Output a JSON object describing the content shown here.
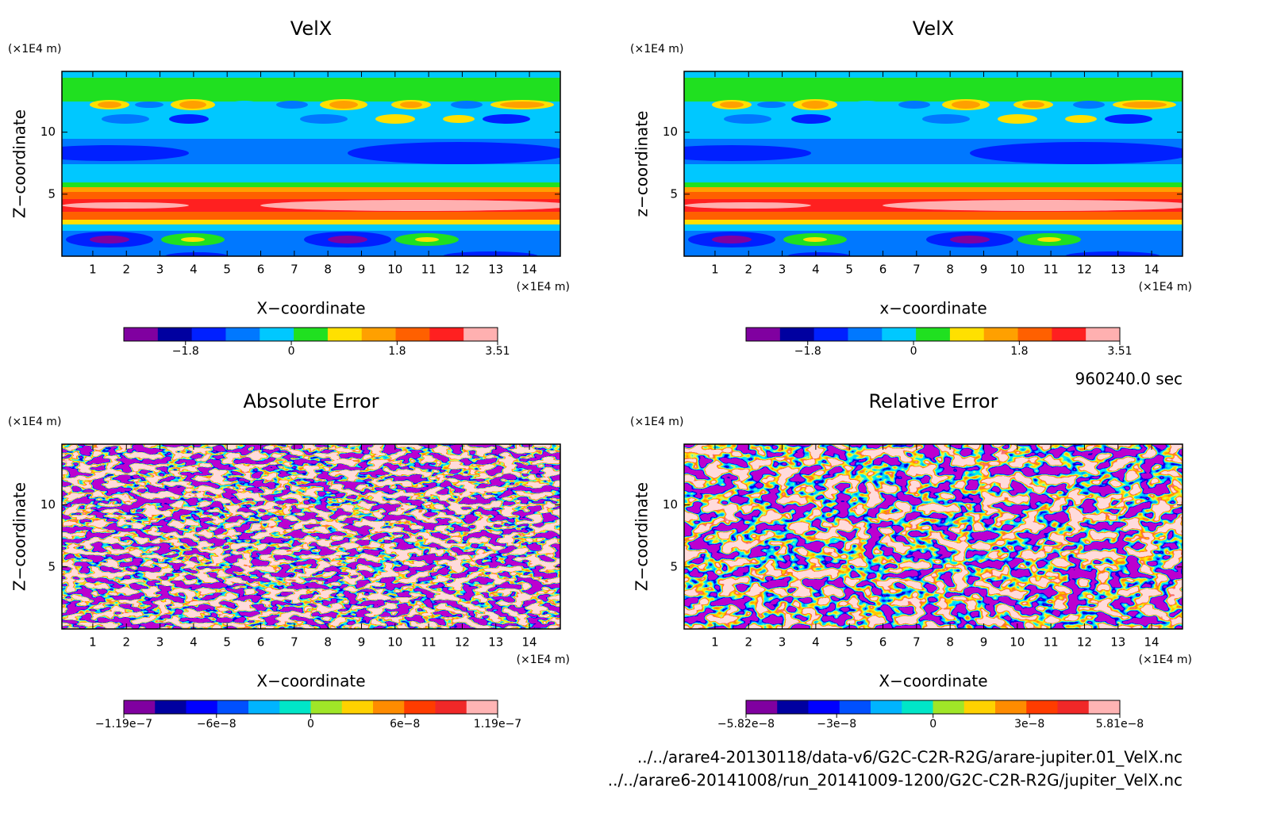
{
  "chart_data": [
    {
      "type": "contour",
      "title": "VelX",
      "xlabel": "X−coordinate",
      "ylabel": "Z−coordinate",
      "xunit": "(×1E4 m)",
      "yunit": "(×1E4 m)",
      "xlim": [
        0.08,
        14.92
      ],
      "ylim": [
        0,
        14.9
      ],
      "xticks": [
        1,
        2,
        3,
        4,
        5,
        6,
        7,
        8,
        9,
        10,
        11,
        12,
        13,
        14
      ],
      "yticks": [
        5,
        10
      ],
      "colors": [
        "#8000a0",
        "#0000a0",
        "#0020ff",
        "#0078ff",
        "#00c8ff",
        "#20e020",
        "#ffe000",
        "#ffa000",
        "#ff6000",
        "#ff2020",
        "#ffb0b0"
      ],
      "clim": [
        -2.85,
        3.51
      ],
      "cticks": [
        {
          "value": -1.8,
          "label": "−1.8"
        },
        0,
        1.8,
        3.51
      ]
    },
    {
      "type": "contour",
      "title": "VelX",
      "xlabel": "x−coordinate",
      "ylabel": "z−coordinate",
      "xunit": "(×1E4 m)",
      "yunit": "(×1E4 m)",
      "xlim": [
        0.08,
        14.92
      ],
      "ylim": [
        0,
        14.9
      ],
      "xticks": [
        1,
        2,
        3,
        4,
        5,
        6,
        7,
        8,
        9,
        10,
        11,
        12,
        13,
        14
      ],
      "yticks": [
        5,
        10
      ],
      "colors": [
        "#8000a0",
        "#0000a0",
        "#0020ff",
        "#0078ff",
        "#00c8ff",
        "#20e020",
        "#ffe000",
        "#ffa000",
        "#ff6000",
        "#ff2020",
        "#ffb0b0"
      ],
      "clim": [
        -2.85,
        3.51
      ],
      "cticks": [
        {
          "value": -1.8,
          "label": "−1.8"
        },
        0,
        1.8,
        3.51
      ]
    },
    {
      "type": "contour",
      "title": "Absolute Error",
      "xlabel": "X−coordinate",
      "ylabel": "Z−coordinate",
      "xunit": "(×1E4 m)",
      "yunit": "(×1E4 m)",
      "xlim": [
        0.08,
        14.92
      ],
      "ylim": [
        0,
        14.9
      ],
      "xticks": [
        1,
        2,
        3,
        4,
        5,
        6,
        7,
        8,
        9,
        10,
        11,
        12,
        13,
        14
      ],
      "yticks": [
        5,
        10
      ],
      "colors": [
        "#8000a0",
        "#0000a0",
        "#0000ff",
        "#0050ff",
        "#00b4ff",
        "#00e6c8",
        "#a0e628",
        "#ffd200",
        "#ff8c00",
        "#ff3c00",
        "#f02828",
        "#ffb4b4"
      ],
      "clim": [
        -1.19e-07,
        1.19e-07
      ],
      "cticks": [
        {
          "value": -1.19e-07,
          "label": "−1.19e−7"
        },
        {
          "value": -6e-08,
          "label": "−6e−8"
        },
        0,
        {
          "value": 6e-08,
          "label": "6e−8"
        },
        {
          "value": 1.19e-07,
          "label": "1.19e−7"
        }
      ]
    },
    {
      "type": "contour",
      "title": "Relative Error",
      "xlabel": "X−coordinate",
      "ylabel": "Z−coordinate",
      "xunit": "(×1E4 m)",
      "yunit": "(×1E4 m)",
      "xlim": [
        0.08,
        14.92
      ],
      "ylim": [
        0,
        14.9
      ],
      "xticks": [
        1,
        2,
        3,
        4,
        5,
        6,
        7,
        8,
        9,
        10,
        11,
        12,
        13,
        14
      ],
      "yticks": [
        5,
        10
      ],
      "colors": [
        "#8000a0",
        "#0000a0",
        "#0000ff",
        "#0050ff",
        "#00b4ff",
        "#00e6c8",
        "#a0e628",
        "#ffd200",
        "#ff8c00",
        "#ff3c00",
        "#f02828",
        "#ffb4b4"
      ],
      "clim": [
        -5.82e-08,
        5.81e-08
      ],
      "cticks": [
        {
          "value": -5.82e-08,
          "label": "−5.82e−8"
        },
        {
          "value": -3e-08,
          "label": "−3e−8"
        },
        0,
        {
          "value": 3e-08,
          "label": "3e−8"
        },
        {
          "value": 5.81e-08,
          "label": "5.81e−8"
        }
      ]
    }
  ],
  "time_label": "960240.0 sec",
  "files": [
    "../../arare4-20130118/data-v6/G2C-C2R-R2G/arare-jupiter.01_VelX.nc",
    "../../arare6-20141008/run_20141009-1200/G2C-C2R-R2G/jupiter_VelX.nc"
  ]
}
